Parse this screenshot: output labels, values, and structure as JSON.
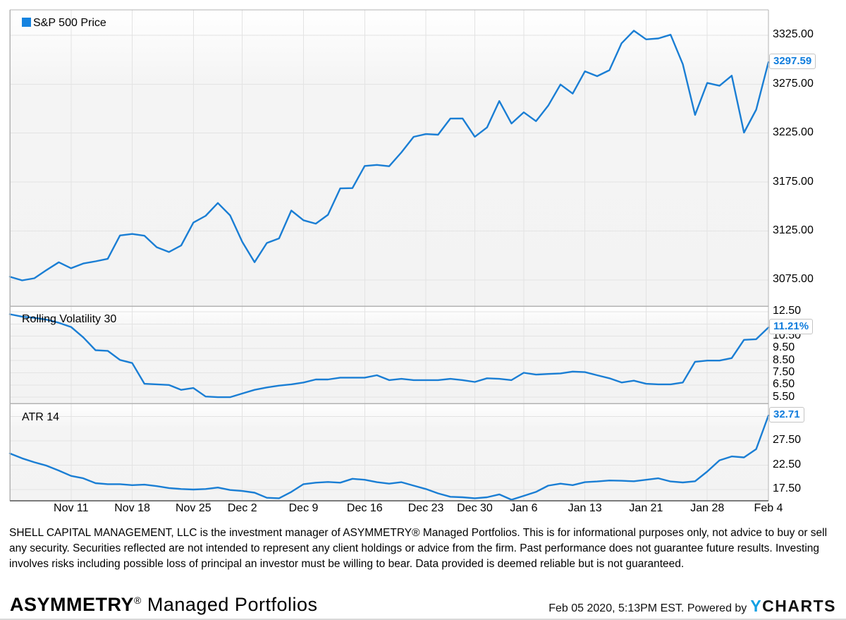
{
  "colors": {
    "line": "#1a7ed4",
    "legend_square": "#1583e0",
    "value_text": "#0f7cdc",
    "logo_blue": "#12a0e3",
    "grid": "#e3e3e3",
    "border": "#b3b3b3",
    "axis_line": "#7a7a7a"
  },
  "disclaimer": "SHELL CAPITAL MANAGEMENT, LLC is the investment manager of ASYMMETRY® Managed Portfolios. This is for informational purposes only, not advice to buy or sell any security. Securities reflected are not intended to represent any client holdings or advice from the firm. Past performance does not guarantee future results. Investing involves risks including possible loss of principal an investor must be willing to bear. Data provided is deemed reliable but is not guaranteed.",
  "footer": {
    "brand_bold": "ASYMMETRY",
    "brand_reg": "®",
    "brand_suffix": " Managed Portfolios",
    "timestamp": "Feb 05 2020, 5:13PM EST. Powered by",
    "logo_y": "Y",
    "logo_rest": "CHARTS"
  },
  "chart_data": {
    "type": "line",
    "x_axis": "trading days Nov 4 2019 - Feb 4 2020",
    "n_points": 63,
    "x_ticks": [
      {
        "label": "Nov 11",
        "i": 5
      },
      {
        "label": "Nov 18",
        "i": 10
      },
      {
        "label": "Nov 25",
        "i": 15
      },
      {
        "label": "Dec 2",
        "i": 19
      },
      {
        "label": "Dec 9",
        "i": 24
      },
      {
        "label": "Dec 16",
        "i": 29
      },
      {
        "label": "Dec 23",
        "i": 34
      },
      {
        "label": "Dec 30",
        "i": 38
      },
      {
        "label": "Jan 6",
        "i": 42
      },
      {
        "label": "Jan 13",
        "i": 47
      },
      {
        "label": "Jan 21",
        "i": 52
      },
      {
        "label": "Jan 28",
        "i": 57
      },
      {
        "label": "Feb 4",
        "i": 62
      }
    ],
    "panels": [
      {
        "name": "S&P 500 Price",
        "has_legend_square": true,
        "value_label": "3297.59",
        "last_value": 3297.59,
        "ylim": [
          3048.3,
          3350.9
        ],
        "yticks": [
          {
            "v": 3325,
            "label": "3325.00"
          },
          {
            "v": 3275,
            "label": "3275.00"
          },
          {
            "v": 3225,
            "label": "3225.00"
          },
          {
            "v": 3175,
            "label": "3175.00"
          },
          {
            "v": 3125,
            "label": "3125.00"
          },
          {
            "v": 3075,
            "label": "3075.00"
          }
        ],
        "grid_values": [
          3325,
          3275,
          3225,
          3175,
          3125,
          3075
        ],
        "values": [
          3078.27,
          3074.62,
          3076.78,
          3085.18,
          3093.08,
          3087.01,
          3091.84,
          3094.04,
          3096.63,
          3120.46,
          3122.03,
          3120.18,
          3108.46,
          3103.54,
          3110.29,
          3133.64,
          3140.52,
          3153.63,
          3140.98,
          3113.87,
          3093.2,
          3112.76,
          3117.43,
          3145.91,
          3135.96,
          3132.52,
          3141.63,
          3168.57,
          3168.8,
          3191.45,
          3192.52,
          3191.14,
          3205.37,
          3221.22,
          3224.01,
          3223.38,
          3239.91,
          3240.02,
          3221.29,
          3230.78,
          3257.85,
          3234.85,
          3246.28,
          3237.18,
          3253.05,
          3274.7,
          3265.35,
          3288.13,
          3283.15,
          3289.29,
          3316.81,
          3329.62,
          3320.79,
          3321.75,
          3325.54,
          3295.47,
          3243.63,
          3276.24,
          3273.4,
          3283.66,
          3225.52,
          3248.92,
          3297.59
        ]
      },
      {
        "name": "Rolling Volatility 30",
        "has_legend_square": false,
        "value_label": "11.21%",
        "last_value": 11.21,
        "ylim": [
          4.985,
          12.962
        ],
        "yticks": [
          {
            "v": 12.5,
            "label": "12.50"
          },
          {
            "v": 10.5,
            "label": "10.50"
          },
          {
            "v": 9.5,
            "label": "9.50"
          },
          {
            "v": 8.5,
            "label": "8.50"
          },
          {
            "v": 7.5,
            "label": "7.50"
          },
          {
            "v": 6.5,
            "label": "6.50"
          },
          {
            "v": 5.5,
            "label": "5.50"
          }
        ],
        "grid_values": [
          12.5,
          11.5,
          10.5,
          9.5,
          8.5,
          7.5,
          6.5,
          5.5
        ],
        "values": [
          12.3,
          12.1,
          12.0,
          11.85,
          11.6,
          11.25,
          10.4,
          9.35,
          9.3,
          8.55,
          8.3,
          6.6,
          6.55,
          6.5,
          6.1,
          6.25,
          5.55,
          5.5,
          5.5,
          5.8,
          6.1,
          6.3,
          6.45,
          6.55,
          6.7,
          6.95,
          6.95,
          7.1,
          7.1,
          7.1,
          7.3,
          6.9,
          7.0,
          6.9,
          6.9,
          6.9,
          7.0,
          6.9,
          6.75,
          7.05,
          7.0,
          6.9,
          7.5,
          7.35,
          7.4,
          7.45,
          7.6,
          7.55,
          7.3,
          7.05,
          6.7,
          6.85,
          6.6,
          6.55,
          6.55,
          6.7,
          8.4,
          8.5,
          8.5,
          8.7,
          10.2,
          10.25,
          11.21
        ]
      },
      {
        "name": "ATR 14",
        "has_legend_square": false,
        "value_label": "32.71",
        "last_value": 32.71,
        "ylim": [
          15.18,
          35.18
        ],
        "yticks": [
          {
            "v": 27.5,
            "label": "27.50"
          },
          {
            "v": 22.5,
            "label": "22.50"
          },
          {
            "v": 17.5,
            "label": "17.50"
          }
        ],
        "grid_values": [
          32.5,
          27.5,
          22.5,
          17.5
        ],
        "values": [
          24.9,
          23.9,
          23.1,
          22.4,
          21.4,
          20.3,
          19.8,
          18.8,
          18.6,
          18.6,
          18.4,
          18.5,
          18.2,
          17.8,
          17.6,
          17.5,
          17.6,
          17.9,
          17.4,
          17.2,
          16.85,
          15.8,
          15.7,
          17.0,
          18.6,
          18.9,
          19.05,
          18.9,
          19.7,
          19.5,
          19.0,
          18.7,
          19.0,
          18.3,
          17.6,
          16.7,
          16.0,
          15.9,
          15.7,
          15.9,
          16.5,
          15.4,
          16.2,
          17.0,
          18.3,
          18.7,
          18.4,
          19.0,
          19.15,
          19.35,
          19.3,
          19.2,
          19.5,
          19.8,
          19.15,
          18.95,
          19.2,
          21.2,
          23.5,
          24.3,
          24.1,
          25.8,
          32.71
        ]
      }
    ]
  }
}
